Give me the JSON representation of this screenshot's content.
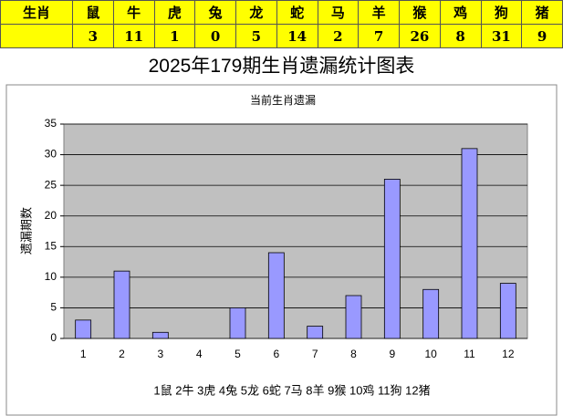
{
  "table": {
    "header_label": "生肖",
    "animals": [
      "鼠",
      "牛",
      "虎",
      "兔",
      "龙",
      "蛇",
      "马",
      "羊",
      "猴",
      "鸡",
      "狗",
      "猪"
    ]
  },
  "page_title": "2025年179期生肖遗漏统计图表",
  "chart_data": {
    "type": "bar",
    "title": "当前生肖遗漏",
    "y_label": "遗漏期数",
    "categories": [
      "1",
      "2",
      "3",
      "4",
      "5",
      "6",
      "7",
      "8",
      "9",
      "10",
      "11",
      "12"
    ],
    "values": [
      3,
      11,
      1,
      0,
      5,
      14,
      2,
      7,
      26,
      8,
      31,
      9
    ],
    "color": "#9999ff",
    "plot_background": "#c0c0c0",
    "grid": true,
    "ylim": [
      0,
      35
    ],
    "yticks": [
      0,
      5,
      10,
      15,
      20,
      25,
      30,
      35
    ],
    "caption": "1鼠 2牛 3虎 4兔 5龙 6蛇 7马 8羊 9猴 10鸡 11狗 12猪"
  }
}
